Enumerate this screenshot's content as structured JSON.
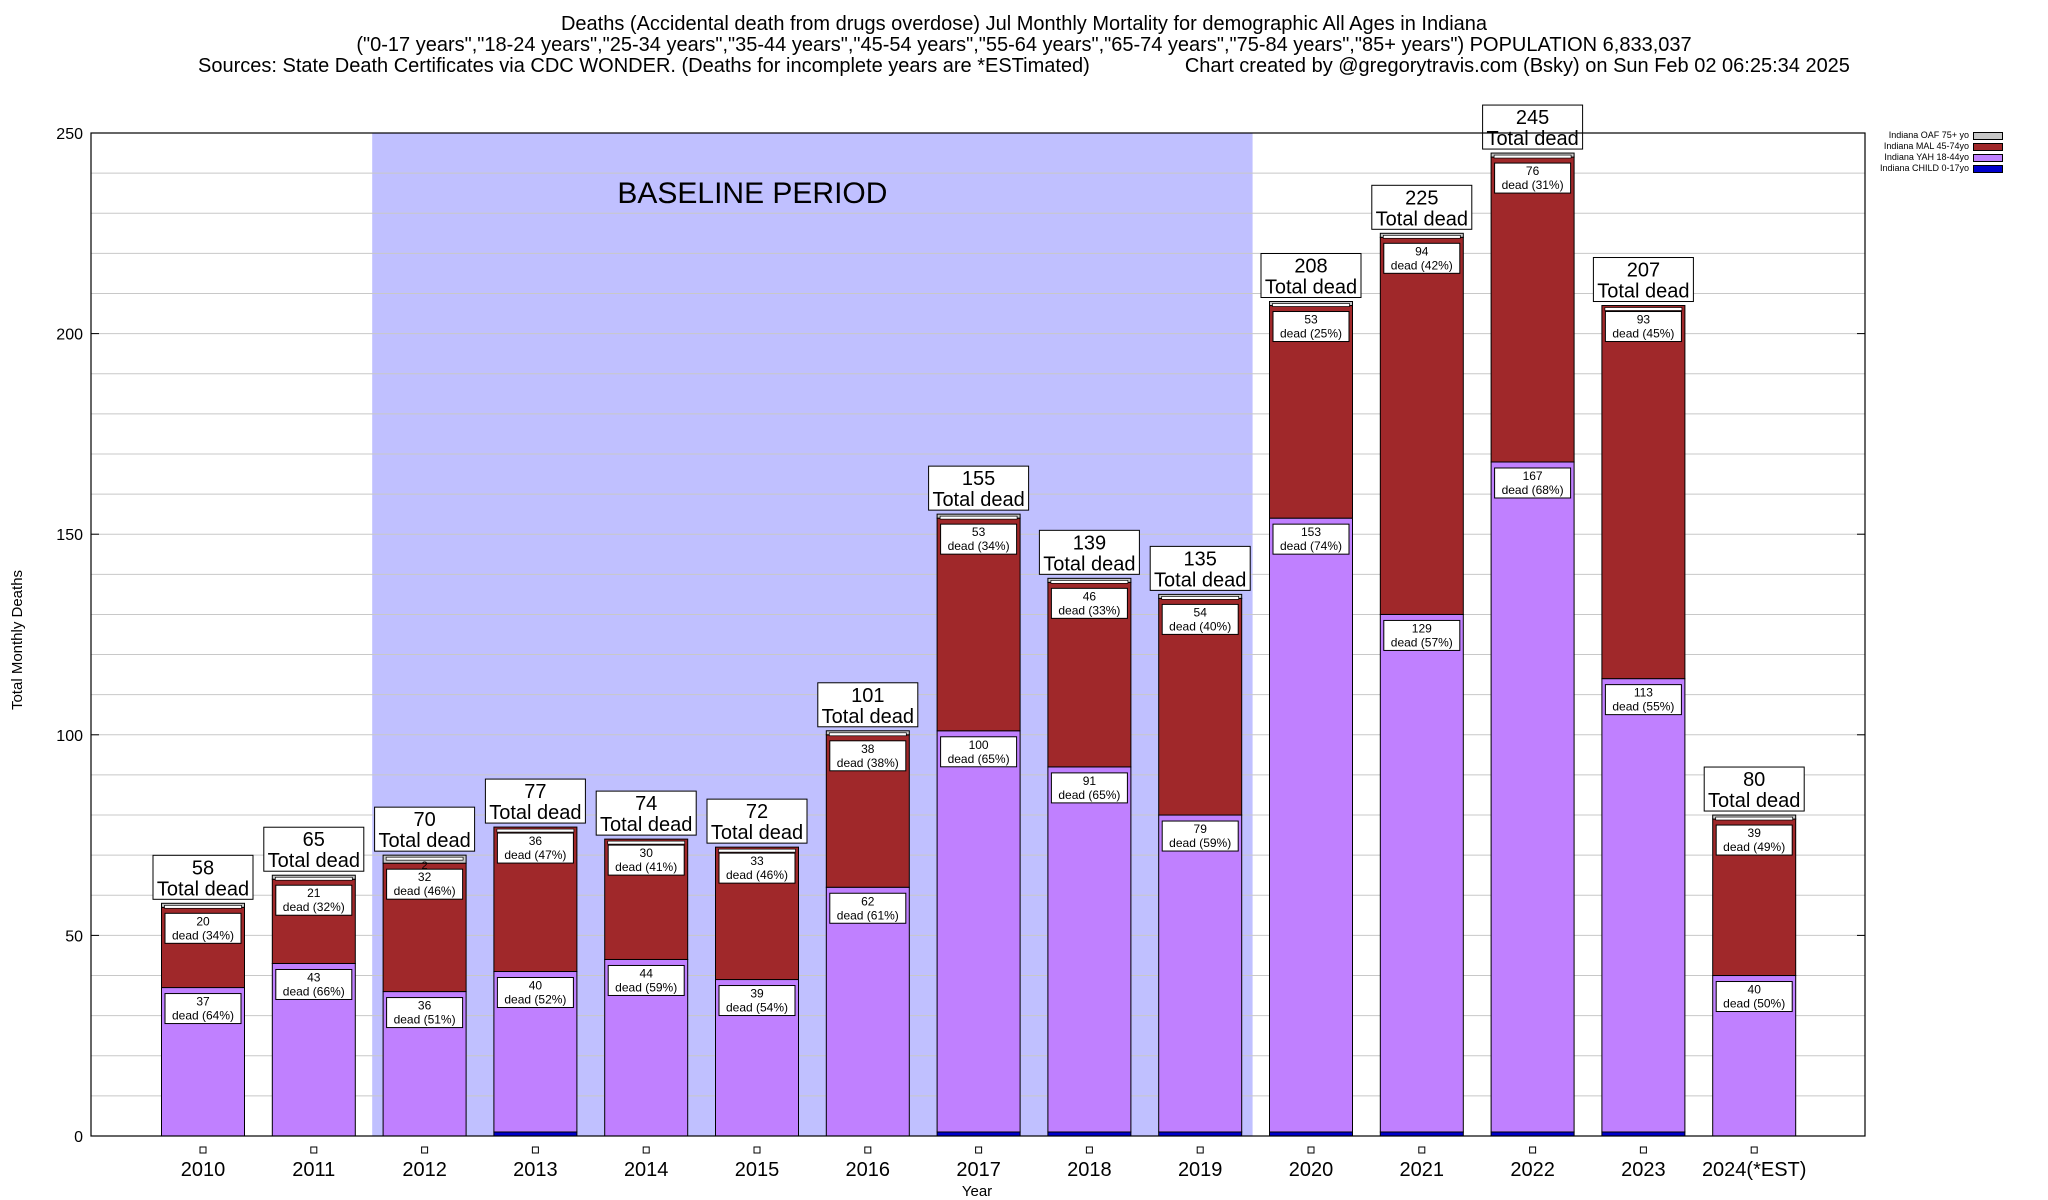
{
  "title": {
    "line1": "Deaths (Accidental death from drugs overdose) Jul Monthly Mortality for demographic All Ages in Indiana",
    "line2": "(\"0-17 years\",\"18-24 years\",\"25-34 years\",\"35-44 years\",\"45-54 years\",\"55-64 years\",\"65-74 years\",\"75-84 years\",\"85+ years\") POPULATION 6,833,037",
    "line3_left": "Sources: State Death Certificates via CDC WONDER. (Deaths for incomplete years are *ESTimated)",
    "line3_right": "Chart created by @gregorytravis.com (Bsky) on Sun Feb 02 06:25:34 2025"
  },
  "chart_data": {
    "type": "bar",
    "stacked": true,
    "xlabel": "Year",
    "ylabel": "Total Monthly Deaths",
    "ylim": [
      0,
      250
    ],
    "yticks": [
      0,
      50,
      100,
      150,
      200,
      250
    ],
    "grid": true,
    "legend_position": "top-right",
    "categories": [
      "2010",
      "2011",
      "2012",
      "2013",
      "2014",
      "2015",
      "2016",
      "2017",
      "2018",
      "2019",
      "2020",
      "2021",
      "2022",
      "2023",
      "2024(*EST)"
    ],
    "series": [
      {
        "name": "Indiana CHILD 0-17yo",
        "color": "#0000cc",
        "values": [
          0,
          0,
          0,
          1,
          0,
          0,
          0,
          1,
          1,
          1,
          1,
          1,
          1,
          1,
          0
        ]
      },
      {
        "name": "Indiana YAH 18-44yo",
        "color": "#c080ff",
        "values": [
          37,
          43,
          36,
          40,
          44,
          39,
          62,
          100,
          91,
          79,
          153,
          129,
          167,
          113,
          40
        ],
        "labels": [
          "37\ndead (64%)",
          "43\ndead (66%)",
          "36\ndead (51%)",
          "40\ndead (52%)",
          "44\ndead (59%)",
          "39\ndead (54%)",
          "62\ndead (61%)",
          "100\ndead (65%)",
          "91\ndead (65%)",
          "79\ndead (59%)",
          "153\ndead (74%)",
          "129\ndead (57%)",
          "167\ndead (68%)",
          "113\ndead (55%)",
          "40\ndead (50%)"
        ]
      },
      {
        "name": "Indiana MAL 45-74yo",
        "color": "#a0282a",
        "values": [
          20,
          21,
          32,
          36,
          30,
          33,
          38,
          53,
          46,
          54,
          53,
          94,
          76,
          93,
          39
        ],
        "labels": [
          "20\ndead (34%)",
          "21\ndead (32%)",
          "32\ndead (46%)",
          "36\ndead (47%)",
          "30\ndead (41%)",
          "33\ndead (46%)",
          "38\ndead (38%)",
          "53\ndead (34%)",
          "46\ndead (33%)",
          "54\ndead (40%)",
          "53\ndead (25%)",
          "94\ndead (42%)",
          "76\ndead (31%)",
          "93\ndead (45%)",
          "39\ndead (49%)"
        ]
      },
      {
        "name": "Indiana OAF 75+ yo",
        "color": "#c8c8c8",
        "values": [
          1,
          1,
          2,
          0,
          0,
          0,
          1,
          1,
          1,
          1,
          1,
          1,
          1,
          0,
          1
        ]
      }
    ],
    "totals": [
      58,
      65,
      70,
      77,
      74,
      72,
      101,
      155,
      139,
      135,
      208,
      225,
      245,
      207,
      80
    ],
    "total_label_suffix": "Total dead",
    "extra_labels": {
      "2012_oaf": "2"
    },
    "annotation": {
      "text": "BASELINE PERIOD",
      "from": "2012",
      "to": "2019",
      "color": "#c0c0ff"
    }
  }
}
